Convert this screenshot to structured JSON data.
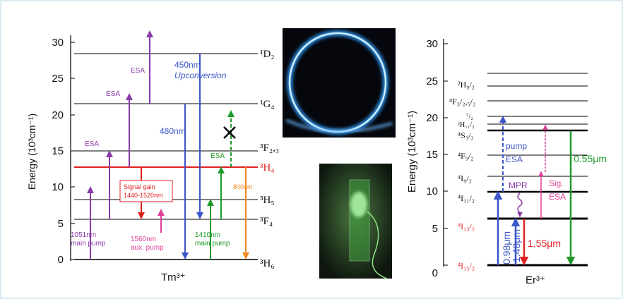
{
  "tm_diagram": {
    "y_label": "Energy (10³cm⁻¹)",
    "yticks": [
      0,
      5,
      10,
      15,
      20,
      25,
      30
    ],
    "levels": [
      "³H₆",
      "³F₄",
      "³H₅",
      "³H₄",
      "³F₂,₃",
      "¹G₄",
      "¹D₂"
    ],
    "annotations": [
      "Signal gain",
      "1440-1520nm",
      "ESA",
      "ESA",
      "ESA",
      "450nm",
      "Upconversion",
      "480nm",
      "ESA",
      "800nm",
      "1051nm",
      "main pump",
      "1560nm",
      "aux. pump",
      "1410nm",
      "main pump"
    ],
    "ion": "Tm³⁺"
  },
  "er_diagram": {
    "y_label": "Energy (10³cm⁻¹)",
    "yticks": [
      0,
      5,
      10,
      15,
      20,
      25,
      30
    ],
    "levels": [
      "⁴I₁₅/₂",
      "⁴I₁₃/₂",
      "⁴I₁₁/₂",
      "⁴I₉/₂",
      "⁴F₉/₂",
      "⁴S₃/₂",
      "²H₁₁/₂",
      "⁷/₂",
      "⁴F₃/₂,₅/₂",
      "²H₉/₂"
    ],
    "annotations": [
      "pump",
      "ESA",
      "MPR",
      "Sig.",
      "ESA",
      "0.55μm",
      "0.98μm",
      "1.48μm",
      "1.55μm"
    ],
    "ion": "Er³⁺"
  }
}
